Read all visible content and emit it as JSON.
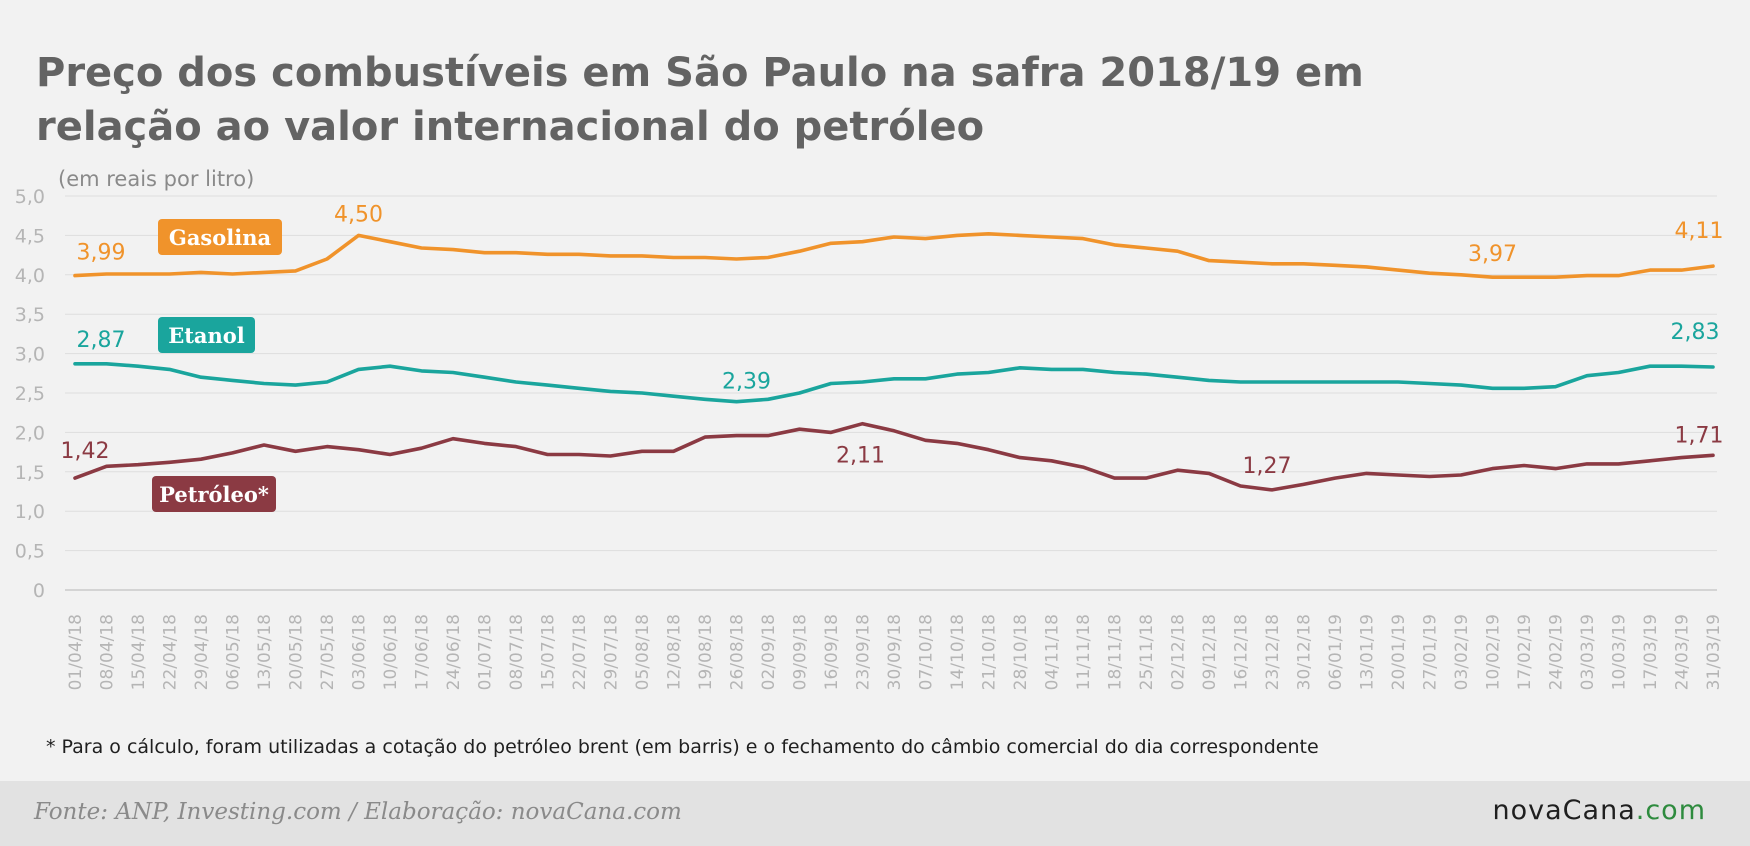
{
  "title": "Preço dos combustíveis em São Paulo na safra 2018/19 em relação ao valor internacional do petróleo",
  "unit_note": "(em reais por litro)",
  "footnote": "* Para o cálculo, foram utilizadas a cotação do petróleo brent (em barris) e o fechamento do câmbio comercial do dia correspondente",
  "source": "Fonte: ANP, Investing.com / Elaboração: novaCana.com",
  "logo": {
    "part1": "novaCana",
    "part2": ".com"
  },
  "colors": {
    "gasolina": "#f0932b",
    "etanol": "#1aa59d",
    "petroleo": "#8b3a43",
    "text": "#636363",
    "axis": "#b5b5b5",
    "grid": "#dedede"
  },
  "chart_data": {
    "type": "line",
    "ylim": [
      0,
      5
    ],
    "yticks": [
      0,
      0.5,
      1.0,
      1.5,
      2.0,
      2.5,
      3.0,
      3.5,
      4.0,
      4.5,
      5.0
    ],
    "ytick_labels": [
      "0",
      "0,5",
      "1,0",
      "1,5",
      "2,0",
      "2,5",
      "3,0",
      "3,5",
      "4,0",
      "4,5",
      "5,0"
    ],
    "grid": true,
    "x": [
      "01/04/18",
      "08/04/18",
      "15/04/18",
      "22/04/18",
      "29/04/18",
      "06/05/18",
      "13/05/18",
      "20/05/18",
      "27/05/18",
      "03/06/18",
      "10/06/18",
      "17/06/18",
      "24/06/18",
      "01/07/18",
      "08/07/18",
      "15/07/18",
      "22/07/18",
      "29/07/18",
      "05/08/18",
      "12/08/18",
      "19/08/18",
      "26/08/18",
      "02/09/18",
      "09/09/18",
      "16/09/18",
      "23/09/18",
      "30/09/18",
      "07/10/18",
      "14/10/18",
      "21/10/18",
      "28/10/18",
      "04/11/18",
      "11/11/18",
      "18/11/18",
      "25/11/18",
      "02/12/18",
      "09/12/18",
      "16/12/18",
      "23/12/18",
      "30/12/18",
      "06/01/19",
      "13/01/19",
      "20/01/19",
      "27/01/19",
      "03/02/19",
      "10/02/19",
      "17/02/19",
      "24/02/19",
      "03/03/19",
      "10/03/19",
      "17/03/19",
      "24/03/19",
      "31/03/19"
    ],
    "series": [
      {
        "name": "Gasolina",
        "color": "#f0932b",
        "values": [
          3.99,
          4.01,
          4.01,
          4.01,
          4.03,
          4.01,
          4.03,
          4.05,
          4.2,
          4.5,
          4.42,
          4.34,
          4.32,
          4.28,
          4.28,
          4.26,
          4.26,
          4.24,
          4.24,
          4.22,
          4.22,
          4.2,
          4.22,
          4.3,
          4.4,
          4.42,
          4.48,
          4.46,
          4.5,
          4.52,
          4.5,
          4.48,
          4.46,
          4.38,
          4.34,
          4.3,
          4.18,
          4.16,
          4.14,
          4.14,
          4.12,
          4.1,
          4.06,
          4.02,
          4.0,
          3.97,
          3.97,
          3.97,
          3.99,
          3.99,
          4.06,
          4.06,
          4.11
        ],
        "data_labels": [
          {
            "index": 0,
            "text": "3,99"
          },
          {
            "index": 9,
            "text": "4,50"
          },
          {
            "index": 45,
            "text": "3,97"
          },
          {
            "index": 52,
            "text": "4,11"
          }
        ]
      },
      {
        "name": "Etanol",
        "color": "#1aa59d",
        "values": [
          2.87,
          2.87,
          2.84,
          2.8,
          2.7,
          2.66,
          2.62,
          2.6,
          2.64,
          2.8,
          2.84,
          2.78,
          2.76,
          2.7,
          2.64,
          2.6,
          2.56,
          2.52,
          2.5,
          2.46,
          2.42,
          2.39,
          2.42,
          2.5,
          2.62,
          2.64,
          2.68,
          2.68,
          2.74,
          2.76,
          2.82,
          2.8,
          2.8,
          2.76,
          2.74,
          2.7,
          2.66,
          2.64,
          2.64,
          2.64,
          2.64,
          2.64,
          2.64,
          2.62,
          2.6,
          2.56,
          2.56,
          2.58,
          2.72,
          2.76,
          2.84,
          2.84,
          2.83
        ],
        "data_labels": [
          {
            "index": 0,
            "text": "2,87"
          },
          {
            "index": 21,
            "text": "2,39"
          },
          {
            "index": 52,
            "text": "2,83"
          }
        ]
      },
      {
        "name": "Petróleo*",
        "color": "#8b3a43",
        "values": [
          1.42,
          1.57,
          1.59,
          1.62,
          1.66,
          1.74,
          1.84,
          1.76,
          1.82,
          1.78,
          1.72,
          1.8,
          1.92,
          1.86,
          1.82,
          1.72,
          1.72,
          1.7,
          1.76,
          1.76,
          1.94,
          1.96,
          1.96,
          2.04,
          2.0,
          2.11,
          2.02,
          1.9,
          1.86,
          1.78,
          1.68,
          1.64,
          1.56,
          1.42,
          1.42,
          1.52,
          1.48,
          1.32,
          1.27,
          1.34,
          1.42,
          1.48,
          1.46,
          1.44,
          1.46,
          1.54,
          1.58,
          1.54,
          1.6,
          1.6,
          1.64,
          1.68,
          1.71
        ],
        "data_labels": [
          {
            "index": 0,
            "text": "1,42"
          },
          {
            "index": 25,
            "text": "2,11"
          },
          {
            "index": 38,
            "text": "1,27"
          },
          {
            "index": 52,
            "text": "1,71"
          }
        ]
      }
    ]
  }
}
